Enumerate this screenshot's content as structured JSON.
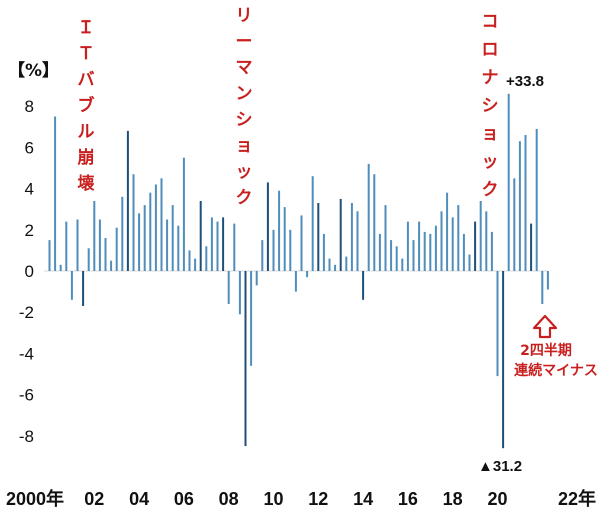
{
  "chart_data": {
    "type": "bar",
    "title": "",
    "ylabel": "【%】",
    "ylim": [
      -9.2,
      9.5
    ],
    "yticks": [
      -8,
      -6,
      -4,
      -2,
      0,
      2,
      4,
      6,
      8
    ],
    "x_start_year": 2000,
    "x_labels": [
      "2000年",
      "02",
      "04",
      "06",
      "08",
      "10",
      "12",
      "14",
      "16",
      "18",
      "20",
      "22年"
    ],
    "series": [
      {
        "values": [
          1.5,
          7.5,
          0.3,
          2.4,
          -1.4,
          2.5,
          -1.7,
          1.1,
          3.4,
          2.5,
          1.6,
          0.5,
          2.1,
          3.6,
          6.8,
          4.7,
          2.8,
          3.2,
          3.8,
          4.2,
          4.5,
          2.5,
          3.2,
          2.2,
          5.5,
          1.0,
          0.6,
          3.4,
          1.2,
          2.6,
          2.4,
          2.6,
          -1.6,
          2.3,
          -2.1,
          -8.5,
          -4.6,
          -0.7,
          1.5,
          4.3,
          2.0,
          3.9,
          3.1,
          2.0,
          -1.0,
          2.7,
          -0.3,
          4.6,
          3.3,
          1.8,
          0.6,
          0.3,
          3.5,
          0.7,
          3.3,
          2.9,
          -1.4,
          5.2,
          4.7,
          1.8,
          3.2,
          1.5,
          1.2,
          0.6,
          2.4,
          1.5,
          2.4,
          1.9,
          1.8,
          2.2,
          2.9,
          3.8,
          2.6,
          3.2,
          1.8,
          0.8,
          2.4,
          3.4,
          2.9,
          1.9,
          -5.1,
          -8.6,
          8.6,
          4.5,
          6.3,
          6.6,
          2.3,
          6.9,
          -1.6,
          -0.9
        ],
        "highlight_indices": [
          6,
          14,
          27,
          31,
          35,
          39,
          48,
          52,
          56,
          76,
          81,
          86
        ]
      }
    ],
    "colors": {
      "bar": "#4f8dbb",
      "bar_dark": "#1f4e79",
      "annotation_red": "#c8201f"
    },
    "annotations": [
      {
        "text": "ＩＴバブル崩壊",
        "near_year": 2001
      },
      {
        "text": "リーマンショック",
        "near_year": 2008.5
      },
      {
        "text": "コロナショック",
        "near_year": 2019.9
      },
      {
        "text": "+33.8",
        "note": "off-scale max value"
      },
      {
        "text": "▲31.2",
        "note": "off-scale min value"
      },
      {
        "text": "2四半期連続マイナス",
        "note": "latest two quarters negative"
      }
    ]
  },
  "labels": {
    "unit": "【%】",
    "it_bubble": "ＩＴバブル崩壊",
    "lehman": "リーマンショック",
    "corona": "コロナショック",
    "max_label": "+33.8",
    "min_label": "▲31.2",
    "note_line1": "2四半期",
    "note_line2": "連続マイナス"
  }
}
